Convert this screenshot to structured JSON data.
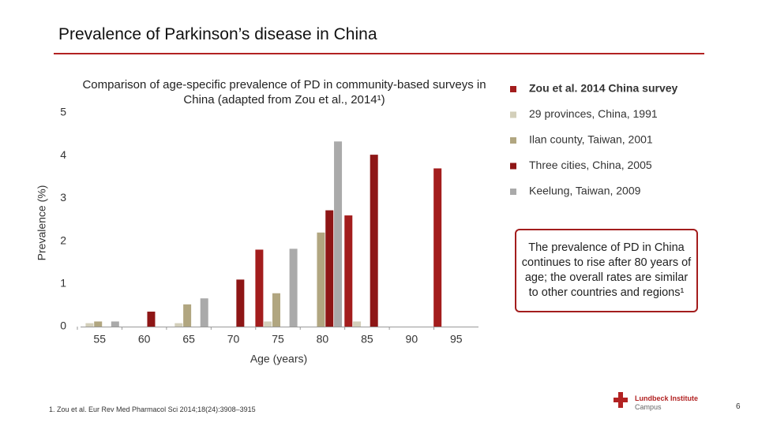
{
  "header": {
    "title": "Prevalence of Parkinson’s disease in China"
  },
  "chart_data": {
    "type": "bar",
    "title": "Comparison of age-specific prevalence of PD in community-based surveys in China (adapted from Zou et al., 2014¹)",
    "x_label": "Age (years)",
    "y_label": "Prevalence (%)",
    "categories": [
      "55",
      "60",
      "65",
      "70",
      "75",
      "80",
      "85",
      "90",
      "95"
    ],
    "series": [
      {
        "name": "Zou et al. 2014 China survey",
        "color": "#a31d1d",
        "values": [
          null,
          null,
          null,
          null,
          1.8,
          null,
          2.6,
          null,
          3.7
        ]
      },
      {
        "name": "29 provinces, China, 1991",
        "color": "#d3cfba",
        "values": [
          0.08,
          null,
          0.08,
          null,
          0.12,
          null,
          0.12,
          null,
          null
        ]
      },
      {
        "name": "Ilan county, Taiwan, 2001",
        "color": "#b1a680",
        "values": [
          0.12,
          null,
          0.52,
          null,
          0.78,
          2.2,
          null,
          null,
          null
        ]
      },
      {
        "name": "Three cities, China, 2005",
        "color": "#8e1616",
        "values": [
          null,
          0.35,
          null,
          1.1,
          null,
          2.72,
          4.02,
          null,
          null
        ]
      },
      {
        "name": "Keelung, Taiwan, 2009",
        "color": "#aaaaaa",
        "values": [
          0.12,
          null,
          0.66,
          null,
          1.82,
          4.33,
          null,
          null,
          null
        ]
      }
    ],
    "ylim": [
      0,
      5
    ],
    "yticks": [
      0,
      1,
      2,
      3,
      4,
      5
    ],
    "grid": false,
    "legend": "right"
  },
  "callout": {
    "text": "The prevalence of PD in China continues to rise after 80 years of age; the overall rates are similar to other countries and regions¹"
  },
  "footnote": "1. Zou et al. Eur Rev Med Pharmacol Sci 2014;18(24):3908–3915",
  "logo": {
    "name": "Lundbeck Institute",
    "sub": "Campus"
  },
  "page_number": "6"
}
